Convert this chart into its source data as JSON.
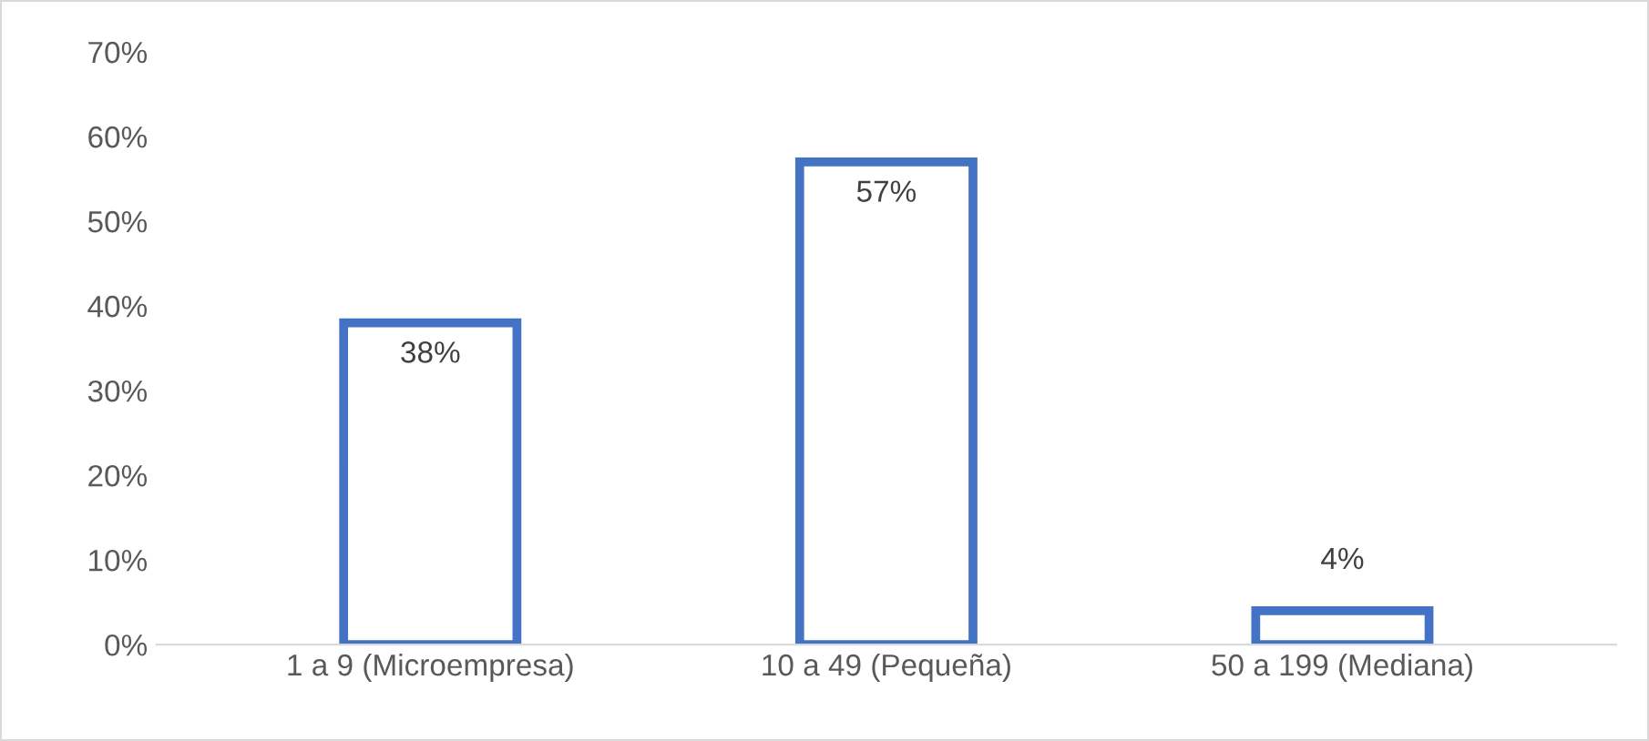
{
  "chart_data": {
    "type": "bar",
    "categories": [
      "1 a 9 (Microempresa)",
      "10 a 49 (Pequeña)",
      "50 a 199 (Mediana)"
    ],
    "values": [
      38,
      57,
      4
    ],
    "color": "#4472c4",
    "ylim": [
      0,
      70
    ],
    "yticks": [
      {
        "value": 0,
        "label": "0%"
      },
      {
        "value": 10,
        "label": "10%"
      },
      {
        "value": 20,
        "label": "20%"
      },
      {
        "value": 30,
        "label": "30%"
      },
      {
        "value": 40,
        "label": "40%"
      },
      {
        "value": 50,
        "label": "50%"
      },
      {
        "value": 60,
        "label": "60%"
      },
      {
        "value": 70,
        "label": "70%"
      }
    ],
    "value_labels": [
      "38%",
      "57%",
      "4%"
    ],
    "grid": false,
    "legend": false
  }
}
